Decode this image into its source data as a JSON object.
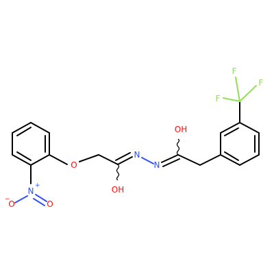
{
  "molecule": {
    "colors": {
      "carbon_bond": "#000000",
      "oxygen": "#ff0d0d",
      "nitrogen": "#3050f8",
      "fluorine": "#90e050",
      "background": "#ffffff"
    },
    "atoms": {
      "ether_o": "O",
      "nitro_n": "N",
      "nitro_charge_plus": "+",
      "nitro_o_minus": "O",
      "nitro_charge_minus": "−",
      "nitro_o_double": "O",
      "hydrazide_n1": "N",
      "hydrazide_n2": "N",
      "hydroxyl_left_o": "O",
      "hydroxyl_left_h": "H",
      "hydroxyl_right_o": "O",
      "hydroxyl_right_h": "H",
      "f1": "F",
      "f2": "F",
      "f3": "F"
    }
  }
}
